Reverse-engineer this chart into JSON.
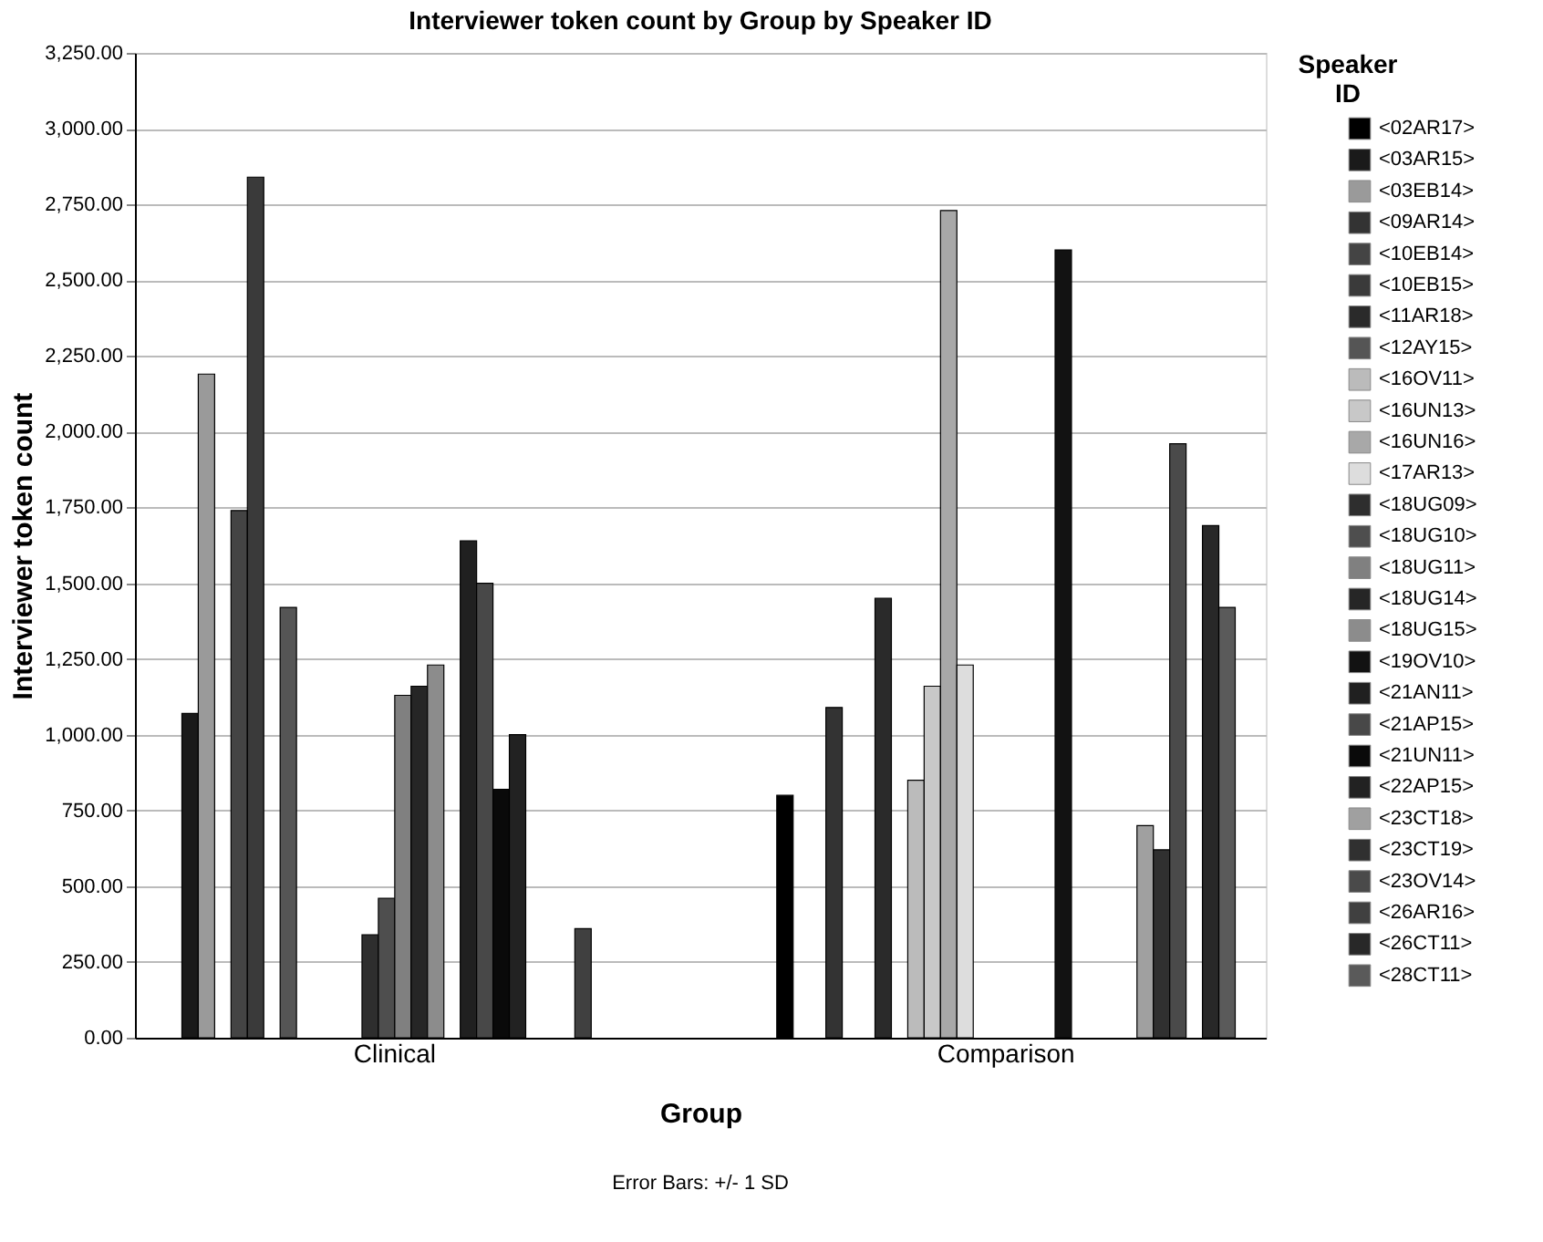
{
  "chart_data": {
    "type": "bar",
    "title": "Interviewer token count by Group by Speaker ID",
    "xlabel": "Group",
    "ylabel": "Interviewer token count",
    "legend_title": "Speaker ID",
    "categories": [
      "Clinical",
      "Comparison"
    ],
    "series": [
      {
        "name": "<02AR17>",
        "color": "#000000",
        "values": [
          null,
          800
        ]
      },
      {
        "name": "<03AR15>",
        "color": "#1a1a1a",
        "values": [
          1070,
          null
        ]
      },
      {
        "name": "<03EB14>",
        "color": "#9a9a9a",
        "values": [
          2190,
          null
        ]
      },
      {
        "name": "<09AR14>",
        "color": "#333333",
        "values": [
          null,
          1090
        ]
      },
      {
        "name": "<10EB14>",
        "color": "#444444",
        "values": [
          1740,
          null
        ]
      },
      {
        "name": "<10EB15>",
        "color": "#3a3a3a",
        "values": [
          2840,
          null
        ]
      },
      {
        "name": "<11AR18>",
        "color": "#2a2a2a",
        "values": [
          null,
          1450
        ]
      },
      {
        "name": "<12AY15>",
        "color": "#555555",
        "values": [
          1420,
          null
        ]
      },
      {
        "name": "<16OV11>",
        "color": "#bbbbbb",
        "values": [
          null,
          850
        ]
      },
      {
        "name": "<16UN13>",
        "color": "#c8c8c8",
        "values": [
          null,
          1160
        ]
      },
      {
        "name": "<16UN16>",
        "color": "#a8a8a8",
        "values": [
          null,
          2730
        ]
      },
      {
        "name": "<17AR13>",
        "color": "#dddddd",
        "values": [
          null,
          1230
        ]
      },
      {
        "name": "<18UG09>",
        "color": "#2e2e2e",
        "values": [
          340,
          null
        ]
      },
      {
        "name": "<18UG10>",
        "color": "#4e4e4e",
        "values": [
          460,
          null
        ]
      },
      {
        "name": "<18UG11>",
        "color": "#808080",
        "values": [
          1130,
          null
        ]
      },
      {
        "name": "<18UG14>",
        "color": "#262626",
        "values": [
          1160,
          null
        ]
      },
      {
        "name": "<18UG15>",
        "color": "#8c8c8c",
        "values": [
          1230,
          null
        ]
      },
      {
        "name": "<19OV10>",
        "color": "#121212",
        "values": [
          null,
          2600
        ]
      },
      {
        "name": "<21AN11>",
        "color": "#202020",
        "values": [
          1640,
          null
        ]
      },
      {
        "name": "<21AP15>",
        "color": "#484848",
        "values": [
          1500,
          null
        ]
      },
      {
        "name": "<21UN11>",
        "color": "#0a0a0a",
        "values": [
          820,
          null
        ]
      },
      {
        "name": "<22AP15>",
        "color": "#222222",
        "values": [
          1000,
          null
        ]
      },
      {
        "name": "<23CT18>",
        "color": "#a0a0a0",
        "values": [
          null,
          700
        ]
      },
      {
        "name": "<23CT19>",
        "color": "#303030",
        "values": [
          null,
          620
        ]
      },
      {
        "name": "<23OV14>",
        "color": "#4a4a4a",
        "values": [
          null,
          1960
        ]
      },
      {
        "name": "<26AR16>",
        "color": "#404040",
        "values": [
          360,
          null
        ]
      },
      {
        "name": "<26CT11>",
        "color": "#282828",
        "values": [
          null,
          1690
        ]
      },
      {
        "name": "<28CT11>",
        "color": "#5a5a5a",
        "values": [
          null,
          1420
        ]
      }
    ],
    "ylim": [
      0,
      3250
    ],
    "yticks": [
      {
        "value": 0,
        "label": "0.00"
      },
      {
        "value": 250,
        "label": "250.00"
      },
      {
        "value": 500,
        "label": "500.00"
      },
      {
        "value": 750,
        "label": "750.00"
      },
      {
        "value": 1000,
        "label": "1,000.00"
      },
      {
        "value": 1250,
        "label": "1,250.00"
      },
      {
        "value": 1500,
        "label": "1,500.00"
      },
      {
        "value": 1750,
        "label": "1,750.00"
      },
      {
        "value": 2000,
        "label": "2,000.00"
      },
      {
        "value": 2250,
        "label": "2,250.00"
      },
      {
        "value": 2500,
        "label": "2,500.00"
      },
      {
        "value": 2750,
        "label": "2,750.00"
      },
      {
        "value": 3000,
        "label": "3,000.00"
      },
      {
        "value": 3250,
        "label": "3,250.00"
      }
    ],
    "grid": "y",
    "legend": "right",
    "annotations": [
      "Error Bars: +/- 1 SD"
    ]
  }
}
